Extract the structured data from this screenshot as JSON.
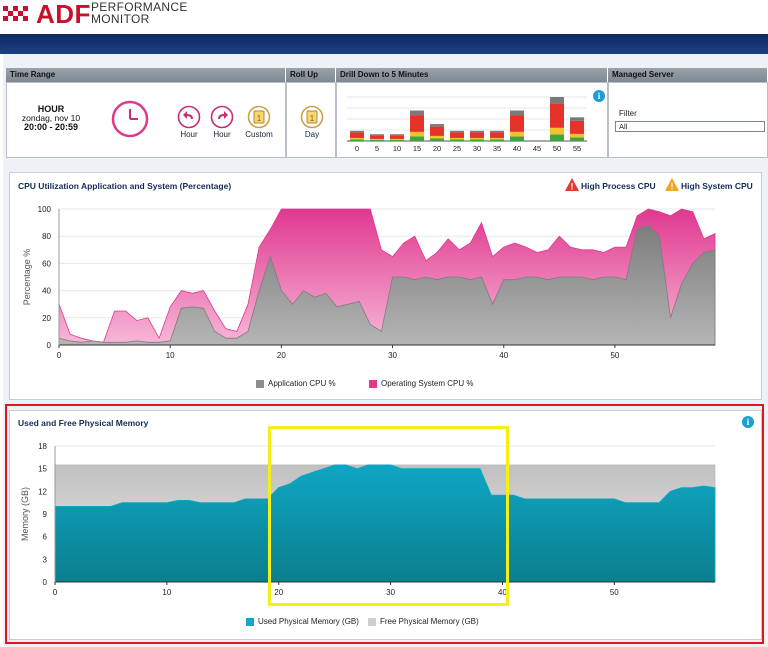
{
  "brand": {
    "name": "ADF",
    "sub1": "PERFORMANCE",
    "sub2": "MONITOR"
  },
  "panels": {
    "time_range": "Time Range",
    "roll_up": "Roll Up",
    "drill_down": "Drill Down to 5 Minutes",
    "managed_server": "Managed Server"
  },
  "time_range": {
    "unit": "HOUR",
    "date": "zondag, nov 10",
    "span": "20:00 - 20:59"
  },
  "buttons": {
    "hour_back": "Hour",
    "hour_fwd": "Hour",
    "custom": "Custom",
    "day": "Day"
  },
  "filter": {
    "label": "Filter",
    "value": "All"
  },
  "drill_chart": {
    "ticks": [
      "0",
      "5",
      "10",
      "15",
      "20",
      "25",
      "30",
      "35",
      "40",
      "45",
      "50",
      "55"
    ]
  },
  "cpu_chart": {
    "title": "CPU Utilization Application and System (Percentage)",
    "warn_high_process": "High Process CPU",
    "warn_high_system": "High System CPU",
    "ylabel": "Percentage %",
    "legend_app": "Application CPU %",
    "legend_os": "Operating System CPU %"
  },
  "mem_chart": {
    "title": "Used and Free Physical Memory",
    "ylabel": "Memory (GB)",
    "legend_used": "Used Physical Memory (GB)",
    "legend_free": "Free Physical Memory (GB)"
  },
  "chart_data": [
    {
      "type": "bar",
      "title": "Drill Down to 5 Minutes",
      "categories": [
        "0",
        "5",
        "10",
        "15",
        "20",
        "25",
        "30",
        "35",
        "40",
        "45",
        "50",
        "55"
      ],
      "series": [
        {
          "values": [
            3,
            2,
            2,
            9,
            5,
            3,
            3,
            3,
            9,
            0,
            13,
            7
          ]
        }
      ]
    },
    {
      "type": "area",
      "title": "CPU Utilization Application and System (Percentage)",
      "ylabel": "Percentage %",
      "ylim": [
        0,
        100
      ],
      "x": [
        0,
        1,
        2,
        3,
        4,
        5,
        6,
        7,
        8,
        9,
        10,
        11,
        12,
        13,
        14,
        15,
        16,
        17,
        18,
        19,
        20,
        21,
        22,
        23,
        24,
        25,
        26,
        27,
        28,
        29,
        30,
        31,
        32,
        33,
        34,
        35,
        36,
        37,
        38,
        39,
        40,
        41,
        42,
        43,
        44,
        45,
        46,
        47,
        48,
        49,
        50,
        51,
        52,
        53,
        54,
        55,
        56,
        57,
        58,
        59
      ],
      "series": [
        {
          "name": "Application CPU %",
          "values": [
            5,
            3,
            2,
            3,
            2,
            2,
            2,
            3,
            2,
            2,
            3,
            27,
            28,
            27,
            10,
            5,
            5,
            10,
            40,
            65,
            40,
            30,
            40,
            35,
            38,
            28,
            30,
            32,
            15,
            10,
            50,
            50,
            48,
            50,
            48,
            50,
            50,
            48,
            50,
            30,
            48,
            48,
            50,
            50,
            48,
            50,
            50,
            50,
            48,
            50,
            50,
            48,
            85,
            88,
            80,
            20,
            45,
            60,
            68,
            70
          ]
        },
        {
          "name": "Operating System CPU %",
          "values": [
            30,
            8,
            5,
            3,
            2,
            25,
            25,
            18,
            20,
            5,
            28,
            40,
            38,
            40,
            25,
            12,
            10,
            30,
            72,
            85,
            100,
            100,
            100,
            100,
            100,
            100,
            100,
            100,
            100,
            70,
            65,
            75,
            80,
            62,
            68,
            78,
            70,
            75,
            90,
            65,
            72,
            75,
            72,
            68,
            70,
            80,
            72,
            70,
            70,
            68,
            72,
            72,
            95,
            100,
            98,
            95,
            100,
            98,
            78,
            82
          ]
        }
      ]
    },
    {
      "type": "area",
      "title": "Used and Free Physical Memory",
      "ylabel": "Memory (GB)",
      "ylim": [
        0,
        18
      ],
      "x": [
        0,
        1,
        2,
        3,
        4,
        5,
        6,
        7,
        8,
        9,
        10,
        11,
        12,
        13,
        14,
        15,
        16,
        17,
        18,
        19,
        20,
        21,
        22,
        23,
        24,
        25,
        26,
        27,
        28,
        29,
        30,
        31,
        32,
        33,
        34,
        35,
        36,
        37,
        38,
        39,
        40,
        41,
        42,
        43,
        44,
        45,
        46,
        47,
        48,
        49,
        50,
        51,
        52,
        53,
        54,
        55,
        56,
        57,
        58,
        59
      ],
      "series": [
        {
          "name": "Used Physical Memory (GB)",
          "values": [
            10,
            10,
            10,
            10,
            10,
            10,
            10.5,
            10.5,
            10.5,
            10.5,
            10.5,
            10.8,
            10.8,
            10.5,
            10.5,
            10.5,
            10.5,
            11,
            11,
            11,
            12.5,
            13,
            14,
            14.5,
            15,
            15.5,
            15.5,
            15,
            15.5,
            15.5,
            15.5,
            15,
            15,
            15,
            15,
            15,
            15,
            15,
            15,
            11.5,
            11.5,
            11.5,
            11,
            11,
            11,
            11,
            11,
            11,
            11,
            11,
            11,
            10.5,
            10.5,
            10.5,
            10.5,
            12,
            12.5,
            12.5,
            12.7,
            12.5
          ]
        },
        {
          "name": "Free Physical Memory (GB)",
          "values": [
            15.5,
            15.5,
            15.5,
            15.5,
            15.5,
            15.5,
            15.5,
            15.5,
            15.5,
            15.5,
            15.5,
            15.5,
            15.5,
            15.5,
            15.5,
            15.5,
            15.5,
            15.5,
            15.5,
            15.5,
            15.5,
            15.5,
            15.5,
            15.5,
            15.5,
            15.5,
            15.5,
            15.5,
            15.5,
            15.5,
            15.5,
            15.5,
            15.5,
            15.5,
            15.5,
            15.5,
            15.5,
            15.5,
            15.5,
            15.5,
            15.5,
            15.5,
            15.5,
            15.5,
            15.5,
            15.5,
            15.5,
            15.5,
            15.5,
            15.5,
            15.5,
            15.5,
            15.5,
            15.5,
            15.5,
            15.5,
            15.5,
            15.5,
            15.5,
            15.5
          ]
        }
      ]
    }
  ]
}
